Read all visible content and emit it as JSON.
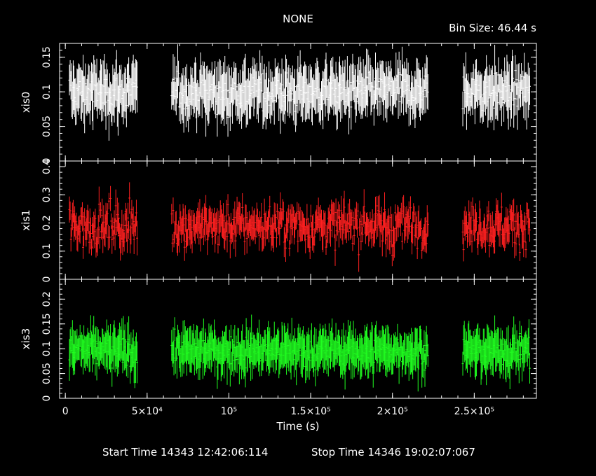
{
  "header": {
    "title": "NONE",
    "bin_size": "Bin Size: 46.44 s"
  },
  "footer": {
    "start_time": "Start Time 14343 12:42:06:114",
    "stop_time": "Stop Time 14346 19:02:07:067"
  },
  "colors": {
    "xis0": "#ffffff",
    "xis1": "#ff2020",
    "xis3": "#20ff20",
    "axes": "#ffffff"
  },
  "chart_data": {
    "type": "scatter",
    "xlabel": "Time (s)",
    "xlim": [
      -3500,
      288000
    ],
    "x_ticks": [
      {
        "value": 0,
        "label": "0"
      },
      {
        "value": 50000,
        "label": "5×10⁴"
      },
      {
        "value": 100000,
        "label": "10⁵"
      },
      {
        "value": 150000,
        "label": "1.5×10⁵"
      },
      {
        "value": 200000,
        "label": "2×10⁵"
      },
      {
        "value": 250000,
        "label": "2.5×10⁵"
      }
    ],
    "gti": [
      [
        2500,
        44000
      ],
      [
        65000,
        222000
      ],
      [
        243000,
        284000
      ]
    ],
    "panels": [
      {
        "name": "xis0",
        "ylabel": "xis0",
        "ylim": [
          0,
          0.17
        ],
        "mean": 0.1,
        "spread": 0.018,
        "err": 0.03,
        "color": "#ffffff",
        "y_ticks": [
          {
            "value": 0,
            "label": "0"
          },
          {
            "value": 0.05,
            "label": "0.05"
          },
          {
            "value": 0.1,
            "label": "0.1"
          },
          {
            "value": 0.15,
            "label": "0.15"
          }
        ]
      },
      {
        "name": "xis1",
        "ylabel": "xis1",
        "ylim": [
          0,
          0.42
        ],
        "mean": 0.19,
        "spread": 0.05,
        "err": 0.045,
        "color": "#ff2020",
        "y_ticks": [
          {
            "value": 0,
            "label": "0"
          },
          {
            "value": 0.1,
            "label": "0.1"
          },
          {
            "value": 0.2,
            "label": "0.2"
          },
          {
            "value": 0.3,
            "label": "0.3"
          },
          {
            "value": 0.4,
            "label": "0.4"
          }
        ]
      },
      {
        "name": "xis3",
        "ylabel": "xis3",
        "ylim": [
          0,
          0.24
        ],
        "mean": 0.095,
        "spread": 0.02,
        "err": 0.035,
        "color": "#20ff20",
        "y_ticks": [
          {
            "value": 0,
            "label": "0"
          },
          {
            "value": 0.05,
            "label": "0.05"
          },
          {
            "value": 0.1,
            "label": "0.1"
          },
          {
            "value": 0.15,
            "label": "0.15"
          },
          {
            "value": 0.2,
            "label": "0.2"
          }
        ]
      }
    ]
  }
}
